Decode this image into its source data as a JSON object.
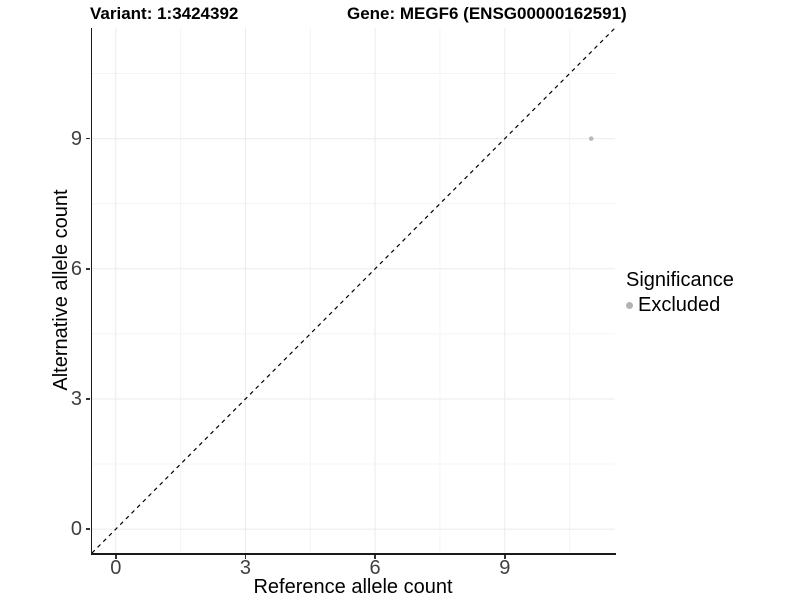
{
  "chart_data": {
    "type": "scatter",
    "title_variant": "Variant: 1:3424392",
    "title_gene": "Gene: MEGF6 (ENSG00000162591)",
    "xlabel": "Reference allele count",
    "ylabel": "Alternative allele count",
    "x_ticks": [
      0,
      3,
      6,
      9
    ],
    "y_ticks": [
      0,
      3,
      6,
      9
    ],
    "x_minor": [
      1.5,
      4.5,
      7.5,
      10.5
    ],
    "y_minor": [
      1.5,
      4.5,
      7.5,
      10.5
    ],
    "x_domain": [
      -0.55,
      11.55
    ],
    "y_domain": [
      -0.55,
      11.55
    ],
    "points": [
      {
        "x": 11,
        "y": 9,
        "significance": "Excluded"
      }
    ],
    "reference_line": {
      "type": "identity",
      "slope": 1,
      "intercept": 0,
      "style": "dashed"
    },
    "legend": {
      "title": "Significance",
      "position": "right",
      "items": [
        {
          "label": "Excluded",
          "color": "#b3b3b3"
        }
      ]
    },
    "grid": "major+minor",
    "colors": {
      "background": "#ffffff",
      "point": "#b9b9b9",
      "gridline_major": "#ebebeb",
      "gridline_minor": "#f4f4f4",
      "axis_line": "#1a1a1a",
      "tick_label": "#404040",
      "dashed_line": "#000000"
    }
  }
}
